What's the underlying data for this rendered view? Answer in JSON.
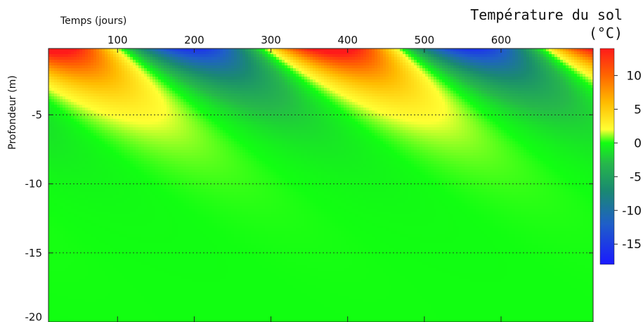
{
  "chart_data": {
    "type": "heatmap",
    "title": "Température du sol",
    "colorbar_label": "(°C)",
    "xlabel": "Temps (jours)",
    "ylabel": "Profondeur (m)",
    "x_axis_position": "top",
    "xlim": [
      10,
      720
    ],
    "ylim": [
      -20,
      -0.2
    ],
    "x_ticks": [
      100,
      200,
      300,
      400,
      500,
      600
    ],
    "y_ticks": [
      -5,
      -10,
      -15,
      -20
    ],
    "y_gridlines": [
      -5,
      -10,
      -15
    ],
    "colorbar": {
      "range": [
        -18,
        14
      ],
      "ticks": [
        10,
        5,
        0,
        -5,
        -10,
        -15
      ],
      "stops": [
        {
          "v": -18,
          "color": "#1a1aff"
        },
        {
          "v": -12,
          "color": "#1f5fc8"
        },
        {
          "v": -7,
          "color": "#1a8a70"
        },
        {
          "v": -3,
          "color": "#26b84a"
        },
        {
          "v": 0,
          "color": "#11ff11"
        },
        {
          "v": 2,
          "color": "#ffff33"
        },
        {
          "v": 6,
          "color": "#ffbb00"
        },
        {
          "v": 10,
          "color": "#ff6600"
        },
        {
          "v": 14,
          "color": "#ff1a1a"
        }
      ]
    },
    "field_model": {
      "surface_amplitude": 17.5,
      "period_days": 365,
      "peak_day": 10,
      "damping_depth_m": 2.55,
      "mean": 0
    },
    "contour_level": 0
  }
}
